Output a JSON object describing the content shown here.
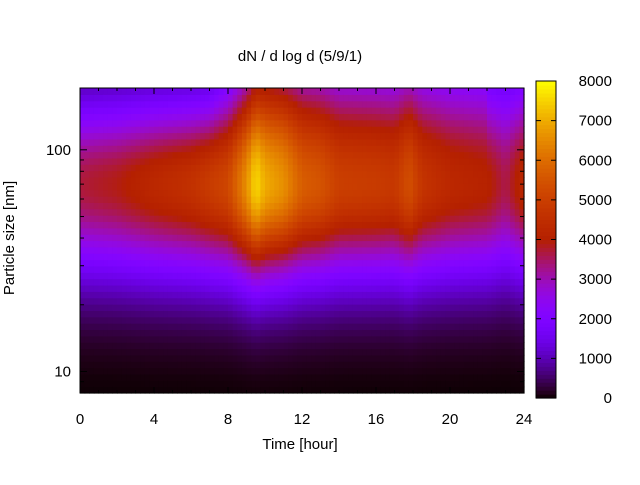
{
  "chart_data": {
    "type": "heatmap",
    "title": "dN / d log d (5/9/1)",
    "xlabel": "Time [hour]",
    "ylabel": "Particle size [nm]",
    "x_range": [
      0,
      24
    ],
    "x_ticks": [
      0,
      4,
      8,
      12,
      16,
      20,
      24
    ],
    "y_scale": "log",
    "y_range": [
      8,
      190
    ],
    "y_ticks": [
      {
        "value": 10,
        "label": "10"
      },
      {
        "value": 100,
        "label": "100"
      }
    ],
    "colorbar": {
      "range": [
        0,
        8000
      ],
      "ticks": [
        0,
        1000,
        2000,
        3000,
        4000,
        5000,
        6000,
        7000,
        8000
      ],
      "palette": "gnuplot-pm3d-black-purple-red-orange-yellow"
    },
    "peak_diameter_nm": 70,
    "intensity_profile": {
      "hours": [
        0,
        2,
        4,
        6,
        8,
        9,
        9.5,
        10,
        11,
        12,
        13,
        14,
        16,
        17,
        17.8,
        18.5,
        20,
        22,
        23,
        24
      ],
      "values": [
        3700,
        3900,
        4300,
        4600,
        5200,
        6600,
        7600,
        7000,
        6600,
        5700,
        5500,
        5000,
        4900,
        4800,
        5400,
        4700,
        4300,
        4100,
        3600,
        4300
      ]
    }
  }
}
